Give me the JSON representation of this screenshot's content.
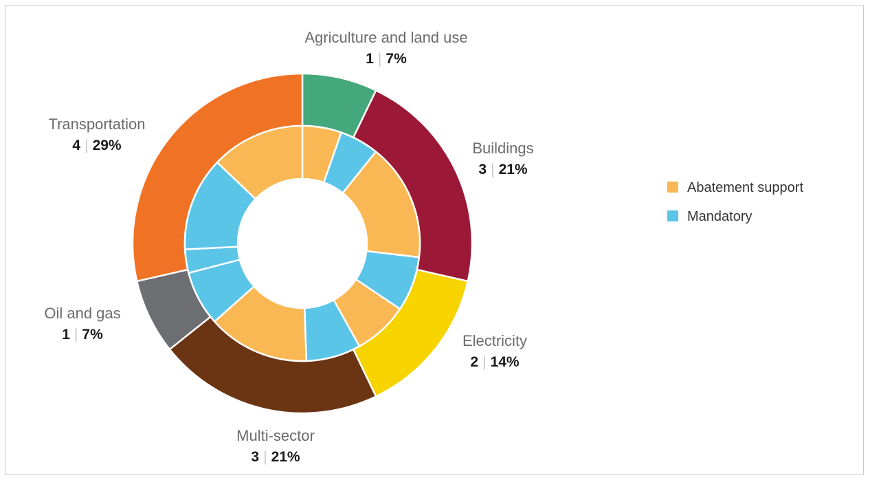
{
  "chart_data": {
    "type": "pie",
    "subtype": "nested-donut",
    "outer_ring": [
      {
        "label": "Agriculture and land use",
        "count": 1,
        "percent_label": "7%",
        "color": "#45A77C"
      },
      {
        "label": "Buildings",
        "count": 3,
        "percent_label": "21%",
        "color": "#9B1836"
      },
      {
        "label": "Electricity",
        "count": 2,
        "percent_label": "14%",
        "color": "#F7D300"
      },
      {
        "label": "Multi-sector",
        "count": 3,
        "percent_label": "21%",
        "color": "#6B3413"
      },
      {
        "label": "Oil and gas",
        "count": 1,
        "percent_label": "7%",
        "color": "#6D6E71"
      },
      {
        "label": "Transportation",
        "count": 4,
        "percent_label": "29%",
        "color": "#F07325"
      }
    ],
    "inner_ring": [
      {
        "sector": "Agriculture and land use",
        "type": "Abatement support",
        "value": 0.5
      },
      {
        "sector": "Agriculture and land use",
        "type": "Mandatory",
        "value": 0.5
      },
      {
        "sector": "Buildings",
        "type": "Abatement support",
        "value": 1.5
      },
      {
        "sector": "Buildings",
        "type": "Mandatory",
        "value": 0.7
      },
      {
        "sector": "Electricity",
        "type": "Abatement support",
        "value": 0.7
      },
      {
        "sector": "Multi-sector",
        "type": "Mandatory",
        "value": 0.7
      },
      {
        "sector": "Multi-sector",
        "type": "Abatement support",
        "value": 1.3
      },
      {
        "sector": "Multi-sector",
        "type": "Mandatory",
        "value": 0.7
      },
      {
        "sector": "Oil and gas",
        "type": "Mandatory",
        "value": 0.3
      },
      {
        "sector": "Transportation",
        "type": "Mandatory",
        "value": 1.2
      },
      {
        "sector": "Transportation",
        "type": "Abatement support",
        "value": 1.2
      }
    ],
    "legend": [
      {
        "label": "Abatement support",
        "color": "#F9B853"
      },
      {
        "label": "Mandatory",
        "color": "#5BC5E8"
      }
    ],
    "legend_position": "right",
    "separator": "|"
  }
}
